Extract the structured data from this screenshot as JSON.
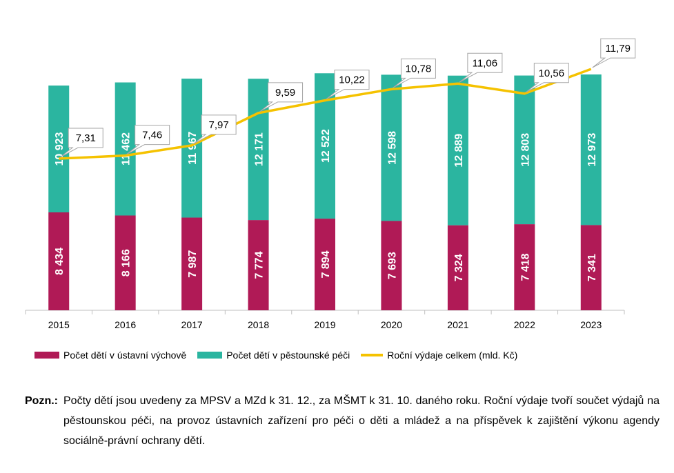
{
  "chart_data": {
    "type": "bar",
    "stacked": true,
    "categories": [
      "2015",
      "2016",
      "2017",
      "2018",
      "2019",
      "2020",
      "2021",
      "2022",
      "2023"
    ],
    "series": [
      {
        "name": "Počet dětí v ústavní výchově",
        "kind": "bar",
        "color": "#B01A56",
        "values": [
          8434,
          8166,
          7987,
          7774,
          7894,
          7693,
          7324,
          7418,
          7341
        ],
        "labels": [
          "8 434",
          "8 166",
          "7 987",
          "7 774",
          "7 894",
          "7 693",
          "7 324",
          "7 418",
          "7 341"
        ]
      },
      {
        "name": "Počet dětí v pěstounské péči",
        "kind": "bar",
        "color": "#2BB5A0",
        "values": [
          10923,
          11462,
          11967,
          12171,
          12522,
          12598,
          12889,
          12803,
          12973
        ],
        "labels": [
          "10 923",
          "11 462",
          "11 967",
          "12 171",
          "12 522",
          "12 598",
          "12 889",
          "12 803",
          "12 973"
        ]
      },
      {
        "name": "Roční výdaje celkem (mld. Kč)",
        "kind": "line",
        "color": "#F5C200",
        "values": [
          7.31,
          7.46,
          7.97,
          9.59,
          10.22,
          10.78,
          11.06,
          10.56,
          11.79
        ],
        "labels": [
          "7,31",
          "7,46",
          "7,97",
          "9,59",
          "10,22",
          "10,78",
          "11,06",
          "10,56",
          "11,79"
        ]
      }
    ],
    "legend_position": "bottom",
    "grid": false
  },
  "note": {
    "label": "Pozn.:",
    "text": "Počty dětí jsou uvedeny za MPSV a MZd k 31. 12., za MŠMT k 31. 10. daného roku. Roční výdaje tvoří součet výdajů na pěstounskou péči, na provoz ústavních zařízení pro péči o děti a mládež a na příspěvek k zajištění výkonu agendy sociálně-právní ochrany dětí."
  }
}
